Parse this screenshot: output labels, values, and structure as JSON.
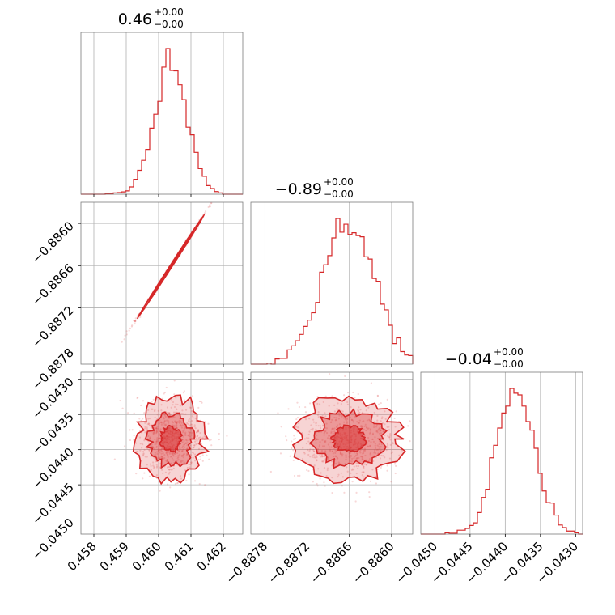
{
  "chart_data": {
    "type": "corner",
    "color": "#d62728",
    "parameters": [
      {
        "title_value": "0.46",
        "title_plus": "+0.00",
        "title_minus": "−0.00",
        "range": [
          0.4576,
          0.4626
        ],
        "ticks": [
          0.458,
          0.459,
          0.46,
          0.461,
          0.462
        ],
        "tick_labels": [
          "0.458",
          "0.459",
          "0.460",
          "0.461",
          "0.462"
        ],
        "hist_center": 0.46038,
        "hist_sigma": 0.00052
      },
      {
        "title_value": "−0.89",
        "title_plus": "+0.00",
        "title_minus": "−0.00",
        "range": [
          -0.888,
          -0.8857
        ],
        "ticks": [
          -0.8878,
          -0.8872,
          -0.8866,
          -0.886
        ],
        "tick_labels": [
          "−0.8878",
          "−0.8872",
          "−0.8866",
          "−0.8860"
        ],
        "hist_center": -0.88661,
        "hist_sigma": 0.00037
      },
      {
        "title_value": "−0.04",
        "title_plus": "+0.00",
        "title_minus": "−0.00",
        "range": [
          -0.0452,
          -0.0429
        ],
        "ticks": [
          -0.045,
          -0.0445,
          -0.044,
          -0.0435,
          -0.043
        ],
        "tick_labels": [
          "−0.0450",
          "−0.0445",
          "−0.0440",
          "−0.0435",
          "−0.0430"
        ],
        "hist_center": -0.04385,
        "hist_sigma": 0.00028
      }
    ],
    "correlation_01": 0.999,
    "correlation_02": 0.0,
    "grid": true
  }
}
